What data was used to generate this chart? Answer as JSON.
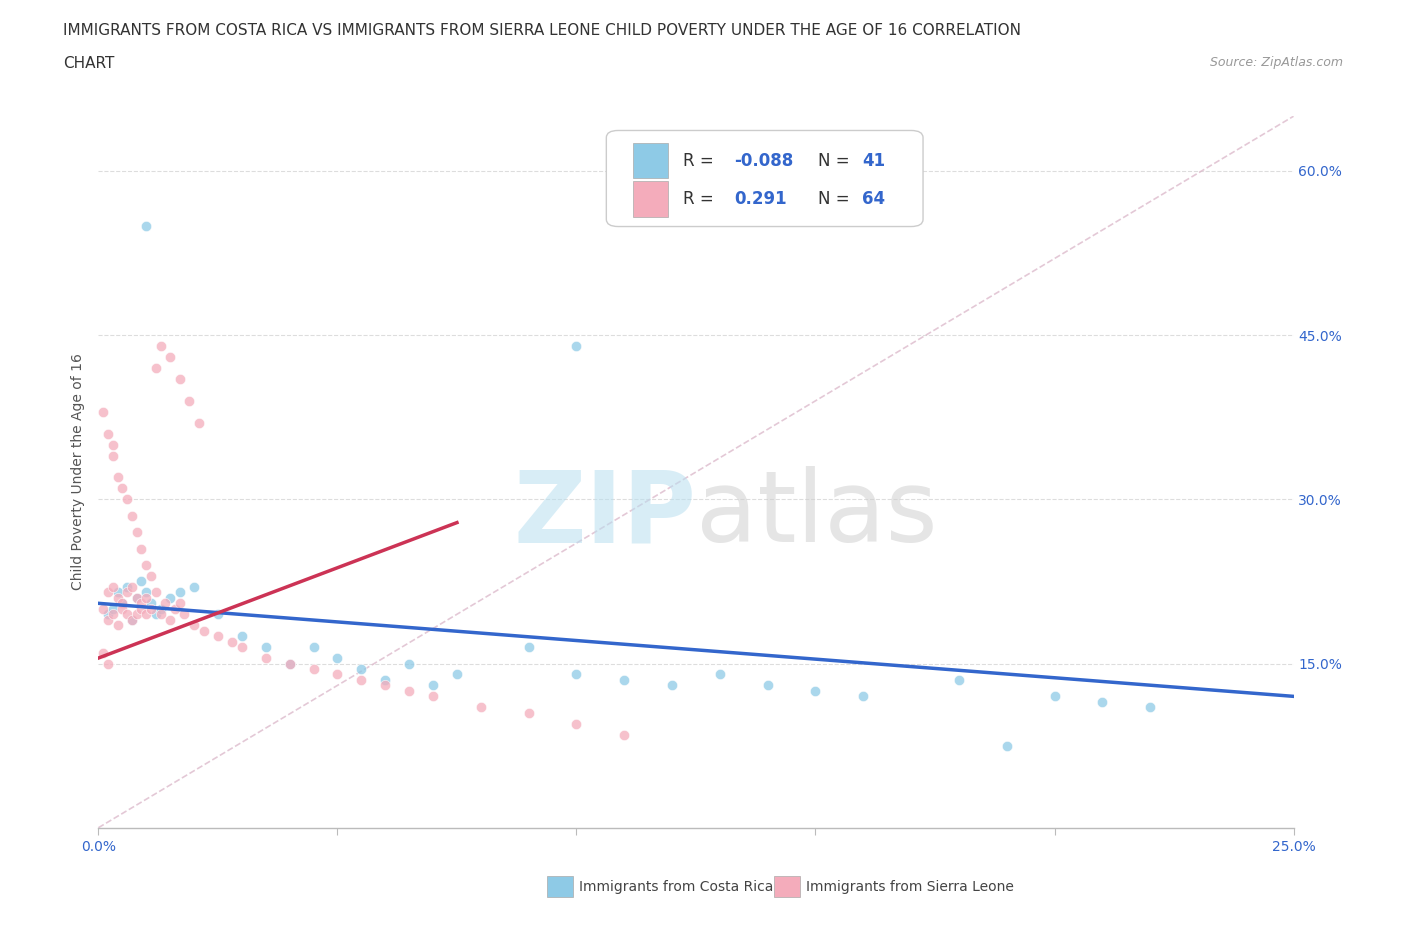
{
  "title_line1": "IMMIGRANTS FROM COSTA RICA VS IMMIGRANTS FROM SIERRA LEONE CHILD POVERTY UNDER THE AGE OF 16 CORRELATION",
  "title_line2": "CHART",
  "source": "Source: ZipAtlas.com",
  "ylabel": "Child Poverty Under the Age of 16",
  "xlim": [
    0.0,
    0.25
  ],
  "ylim": [
    0.0,
    0.65
  ],
  "xticks": [
    0.0,
    0.05,
    0.1,
    0.15,
    0.2,
    0.25
  ],
  "yticks": [
    0.0,
    0.15,
    0.3,
    0.45,
    0.6
  ],
  "xticklabels": [
    "0.0%",
    "",
    "",
    "",
    "",
    "25.0%"
  ],
  "yticklabels": [
    "",
    "15.0%",
    "30.0%",
    "45.0%",
    "60.0%"
  ],
  "costa_rica_color": "#8ecae6",
  "sierra_leone_color": "#f4acbb",
  "costa_rica_line_color": "#3366cc",
  "sierra_leone_line_color": "#cc3355",
  "R_costa_rica": -0.088,
  "N_costa_rica": 41,
  "R_sierra_leone": 0.291,
  "N_sierra_leone": 64,
  "watermark_text": "ZIPatlas",
  "watermark_color": "#cce8f4",
  "background_color": "#ffffff",
  "title_fontsize": 11,
  "axis_label_fontsize": 10,
  "tick_fontsize": 10,
  "legend_fontsize": 12,
  "ref_line_color": "#ddbbcc",
  "grid_color": "#dddddd"
}
